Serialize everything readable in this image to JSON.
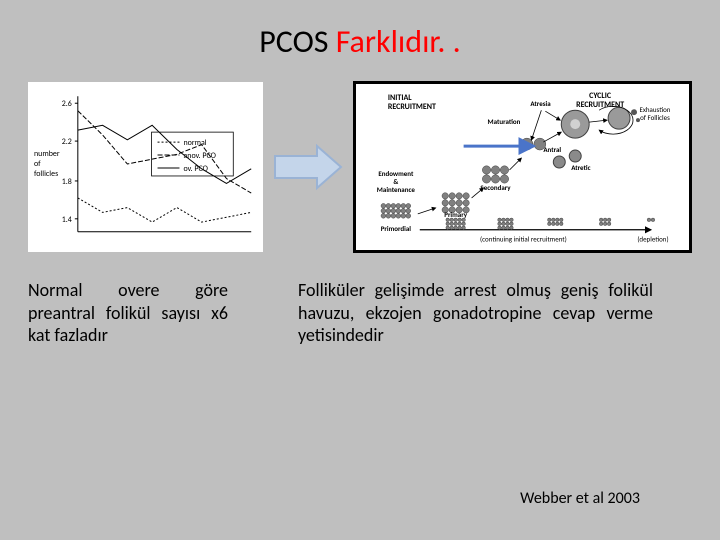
{
  "title": {
    "part1": "PCOS ",
    "part2": "Farklıdır. ."
  },
  "chart": {
    "type": "line",
    "background": "#ffffff",
    "yLabel": "number\nof\nfollicles",
    "yTicks": [
      "2.6",
      "2.2",
      "1.8",
      "1.4"
    ],
    "legend": {
      "items": [
        {
          "label": "normal",
          "dash": "2,2"
        },
        {
          "label": "anov. PCO",
          "dash": "5,2"
        },
        {
          "label": "ov. PCO",
          "dash": "0"
        }
      ]
    },
    "series": [
      {
        "name": "normal",
        "dash": "2,2",
        "points": [
          [
            0,
            1.65
          ],
          [
            1,
            1.5
          ],
          [
            2,
            1.55
          ],
          [
            3,
            1.4
          ],
          [
            4,
            1.55
          ],
          [
            5,
            1.4
          ],
          [
            6,
            1.45
          ],
          [
            7,
            1.5
          ]
        ]
      },
      {
        "name": "anovPCO",
        "dash": "5,2",
        "points": [
          [
            0,
            2.55
          ],
          [
            1,
            2.3
          ],
          [
            2,
            2.0
          ],
          [
            3,
            2.05
          ],
          [
            4,
            2.1
          ],
          [
            5,
            2.2
          ],
          [
            6,
            1.85
          ],
          [
            7,
            1.7
          ]
        ]
      },
      {
        "name": "ovPCO",
        "dash": "0",
        "points": [
          [
            0,
            2.35
          ],
          [
            1,
            2.4
          ],
          [
            2,
            2.25
          ],
          [
            3,
            2.4
          ],
          [
            4,
            2.15
          ],
          [
            5,
            1.95
          ],
          [
            6,
            1.8
          ],
          [
            7,
            1.95
          ]
        ]
      }
    ],
    "xDomain": [
      0,
      7
    ],
    "yDomain": [
      1.3,
      2.7
    ],
    "stroke": "#000000",
    "strokeWidth": 1
  },
  "arrow": {
    "fill": "#c4d5ea",
    "stroke": "#9ab3d5",
    "strokeWidth": 2
  },
  "diagram": {
    "background": "#ffffff",
    "border": "#000000",
    "headings": {
      "initial": "INITIAL\nRECRUITMENT",
      "cyclic": "CYCLIC\nRECRUITMENT",
      "exhaust": "Exhaustion\nof Follicles"
    },
    "stageLabels": [
      "Primordial",
      "Primary",
      "Secondary",
      "Antral",
      "Maturation",
      "Atresia",
      "Atretic",
      "Endowment\n&\nMaintenance"
    ],
    "flowLabels": [
      "(continuing initial recruitment)",
      "(depletion)"
    ],
    "cellFill": "#808080",
    "cellStroke": "#404040",
    "arrowStroke": "#000000",
    "blueAccent": "#4a74c9"
  },
  "captions": {
    "left": "Normal overe göre preantral folikül sayısı x6 kat fazladır",
    "right": "Folliküler gelişimde arrest olmuş geniş folikül havuzu, ekzojen gonadotropine cevap verme yetisindedir"
  },
  "citation": "Webber et al 2003"
}
